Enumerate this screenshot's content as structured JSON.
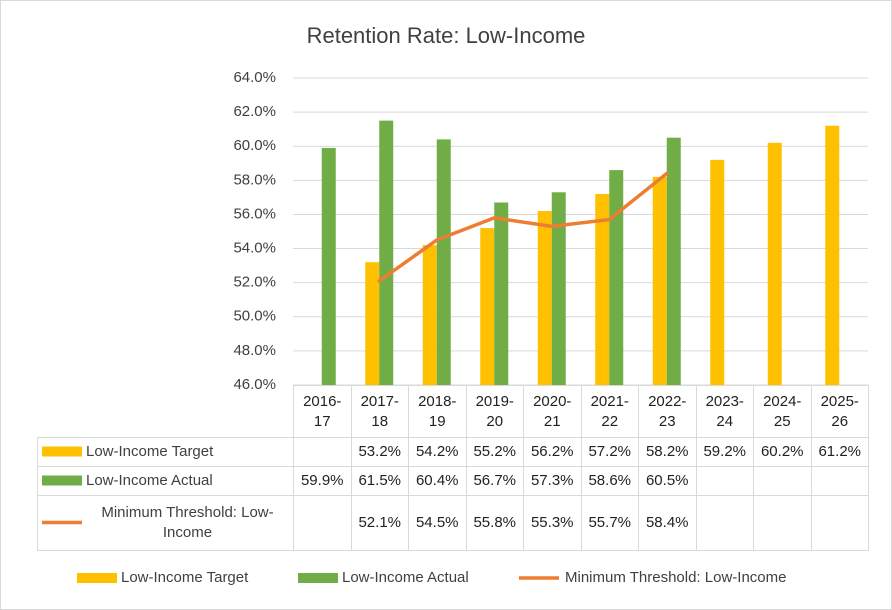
{
  "chart_data": {
    "type": "bar",
    "title": "Retention Rate: Low-Income",
    "categories": [
      "2016-17",
      "2017-18",
      "2018-19",
      "2019-20",
      "2020-21",
      "2021-22",
      "2022-23",
      "2023-24",
      "2024-25",
      "2025-26"
    ],
    "series": [
      {
        "name": "Low-Income Target",
        "type": "bar",
        "color": "#ffc000",
        "values": [
          null,
          53.2,
          54.2,
          55.2,
          56.2,
          57.2,
          58.2,
          59.2,
          60.2,
          61.2
        ],
        "value_labels": [
          null,
          "53.2%",
          "54.2%",
          "55.2%",
          "56.2%",
          "57.2%",
          "58.2%",
          "59.2%",
          "60.2%",
          "61.2%"
        ]
      },
      {
        "name": "Low-Income Actual",
        "type": "bar",
        "color": "#70ad47",
        "values": [
          59.9,
          61.5,
          60.4,
          56.7,
          57.3,
          58.6,
          60.5,
          null,
          null,
          null
        ],
        "value_labels": [
          "59.9%",
          "61.5%",
          "60.4%",
          "56.7%",
          "57.3%",
          "58.6%",
          "60.5%",
          null,
          null,
          null
        ]
      },
      {
        "name": "Minimum Threshold: Low-Income",
        "type": "line",
        "color": "#ed7d31",
        "values": [
          null,
          52.1,
          54.5,
          55.8,
          55.3,
          55.7,
          58.4,
          null,
          null,
          null
        ],
        "value_labels": [
          null,
          "52.1%",
          "54.5%",
          "55.8%",
          "55.3%",
          "55.7%",
          "58.4%",
          null,
          null,
          null
        ]
      }
    ],
    "ylim": [
      46,
      64
    ],
    "yticks": [
      {
        "value": 46,
        "label": "46.0%"
      },
      {
        "value": 48,
        "label": "48.0%"
      },
      {
        "value": 50,
        "label": "50.0%"
      },
      {
        "value": 52,
        "label": "52.0%"
      },
      {
        "value": 54,
        "label": "54.0%"
      },
      {
        "value": 56,
        "label": "56.0%"
      },
      {
        "value": 58,
        "label": "58.0%"
      },
      {
        "value": 60,
        "label": "60.0%"
      },
      {
        "value": 62,
        "label": "62.0%"
      },
      {
        "value": 64,
        "label": "64.0%"
      }
    ],
    "grid": true,
    "data_table": true,
    "legend": "bottom"
  }
}
